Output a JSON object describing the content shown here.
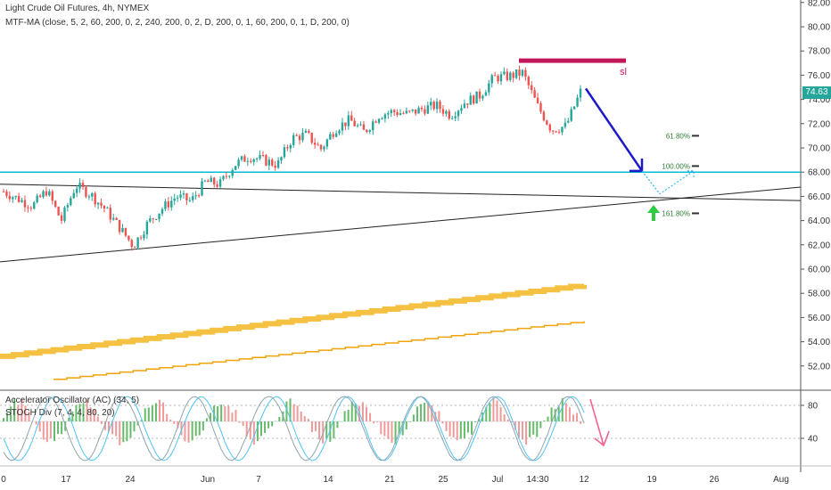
{
  "header": {
    "title": "Light Crude Oil Futures, 4h, NYMEX",
    "indicator": "MTF-MA (close, 5, 2, 60, 200, 0, 2, 240, 200, 0, 2, D, 200, 0, 1, 60, 200, 0, 1, D, 200, 0)"
  },
  "sub_pane": {
    "indicator1": "Accelerator Oscillator (AC) (34, 5)",
    "indicator2": "STOCH Div (7, 4, 4, 80, 20)"
  },
  "price_badge": "74.63",
  "colors": {
    "up": "#26a69a",
    "down": "#ef5350",
    "support": "#00bcd4",
    "trend": "#222222",
    "ma_thick": "#f5c142",
    "ma_thin": "#f0a30a",
    "forecast_arrow": "#1a1ac8",
    "stop_loss": "#c2185b",
    "fib_text": "#2e7d32",
    "osc_arrow": "#f06292"
  },
  "annotations": {
    "stop_loss_label": "sl",
    "fib_levels": [
      "61.80%",
      "100.00%",
      "161.80%"
    ]
  },
  "chart_data": {
    "type": "candlestick",
    "yaxis_ticks": [
      "82.00",
      "80.00",
      "78.00",
      "76.00",
      "74.00",
      "72.00",
      "70.00",
      "68.00",
      "66.00",
      "64.00",
      "62.00",
      "60.00",
      "58.00",
      "56.00",
      "54.00",
      "52.00"
    ],
    "ylim": [
      50.6,
      83.0
    ],
    "xaxis_ticks": [
      "0",
      "17",
      "24",
      "Jun",
      "7",
      "14",
      "21",
      "25",
      "Jul",
      "14:30",
      "12",
      "19",
      "26",
      "Aug"
    ],
    "osc_ticks": [
      "80",
      "40"
    ],
    "close_path": [
      66.4,
      65.8,
      65.2,
      66.5,
      64.0,
      66.9,
      66.2,
      65.0,
      63.5,
      61.9,
      63.8,
      65.0,
      66.0,
      65.6,
      67.2,
      67.0,
      68.6,
      69.3,
      69.0,
      68.6,
      70.8,
      71.1,
      69.9,
      71.6,
      72.3,
      71.3,
      72.7,
      73.0,
      72.8,
      73.2,
      73.5,
      72.7,
      73.8,
      74.3,
      75.8,
      75.9,
      76.2,
      73.5,
      71.5,
      71.8,
      74.63
    ],
    "support_level": 68.0,
    "trendline_upper": {
      "from": [
        0,
        67.0
      ],
      "to": [
        932,
        65.6
      ]
    },
    "trendline_lower": {
      "from": [
        0,
        60.6
      ],
      "to": [
        932,
        67.0
      ]
    },
    "stop_loss": 77.2,
    "forecast_low": 66.2,
    "fib_values": [
      71.0,
      68.5,
      64.6
    ],
    "ma_thick": {
      "start": 52.8,
      "end": 58.7
    },
    "ma_thin": {
      "start": 50.9,
      "end": 55.7
    }
  }
}
